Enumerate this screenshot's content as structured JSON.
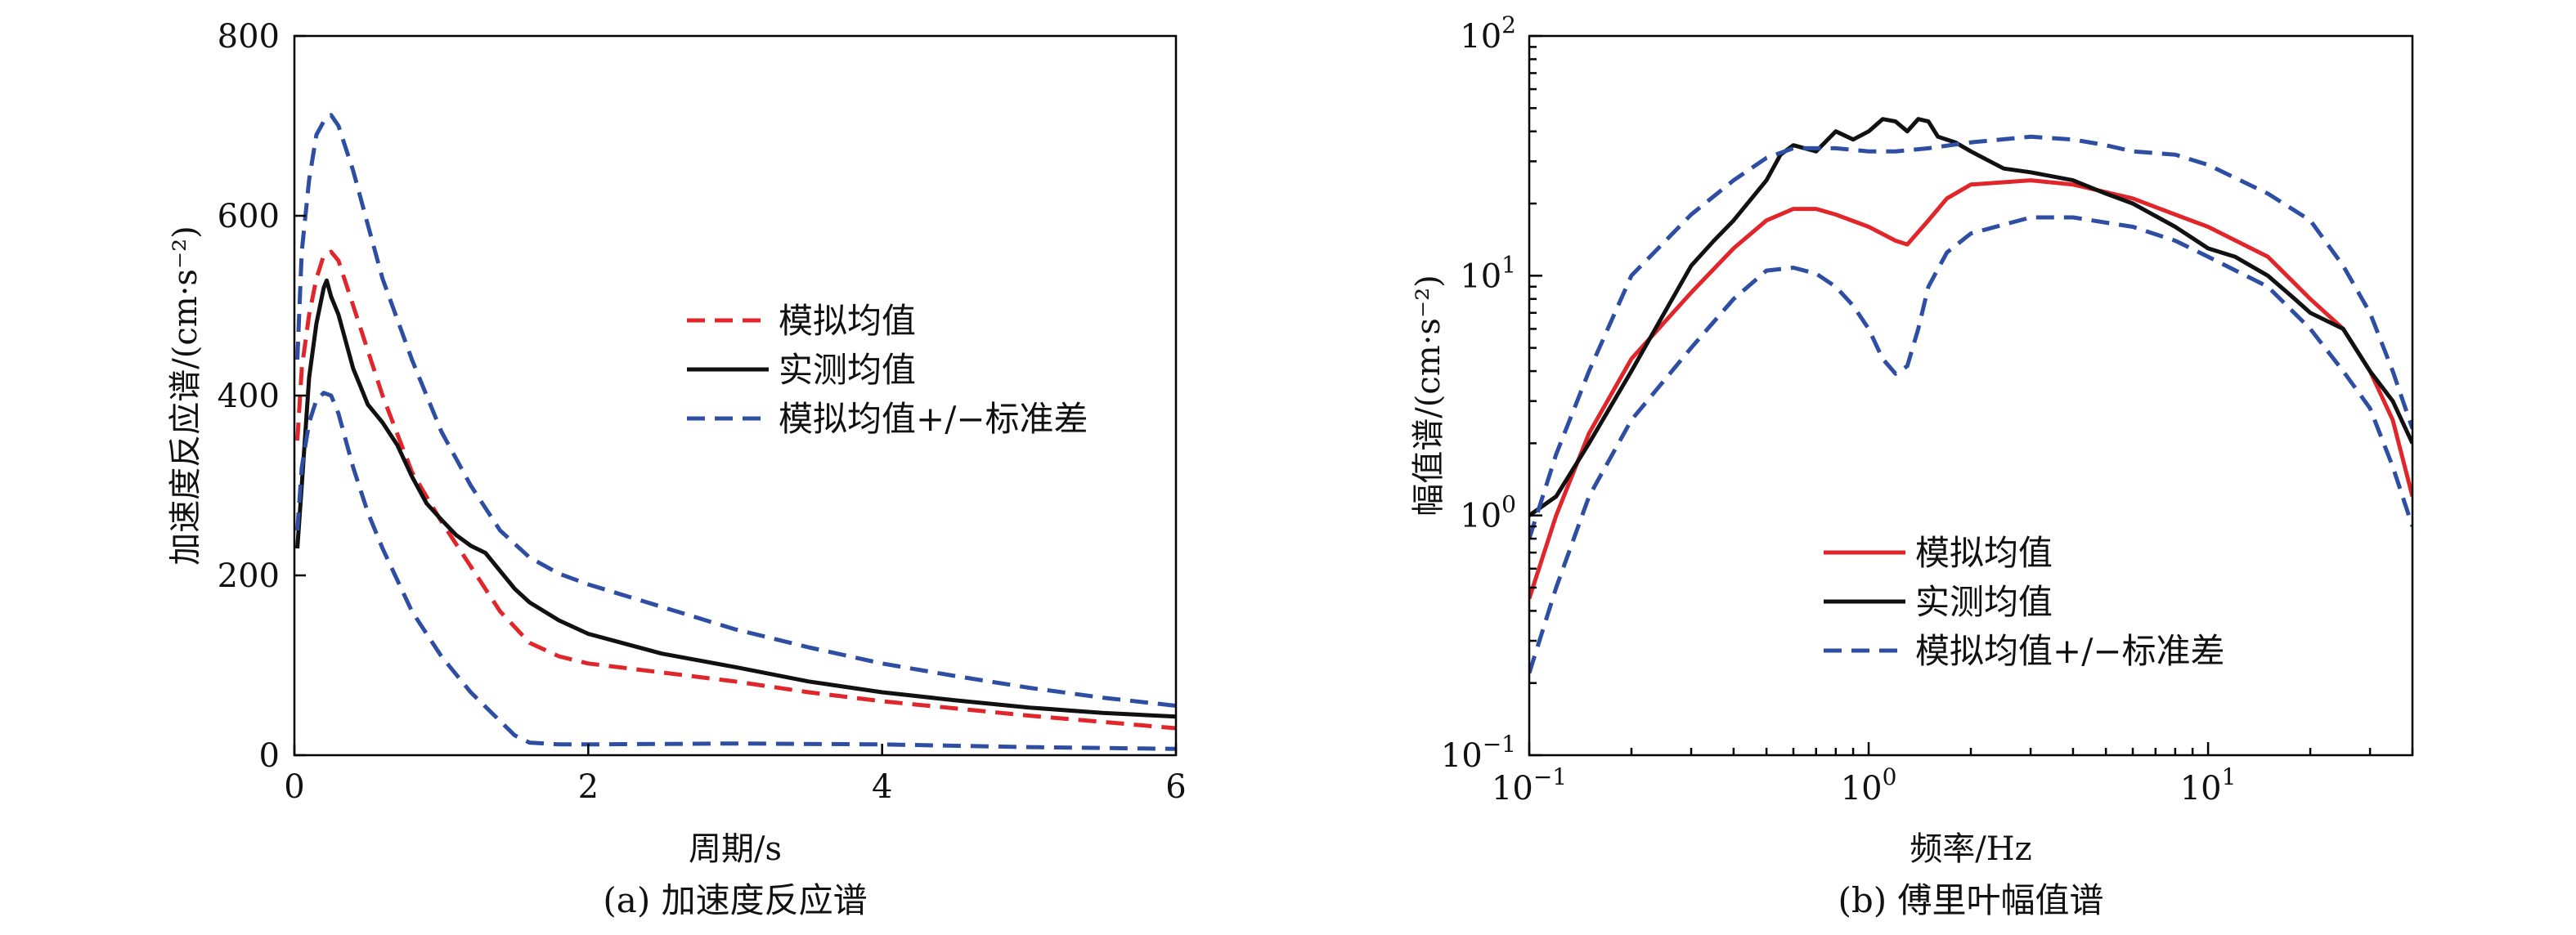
{
  "chart_data": [
    {
      "type": "line",
      "caption": "(a) 加速度反应谱",
      "xlabel": "周期/s",
      "ylabel": "加速度反应谱/(cm·s⁻²)",
      "xlim": [
        0,
        6
      ],
      "ylim": [
        0,
        800
      ],
      "xticks": [
        "0",
        "2",
        "4",
        "6"
      ],
      "yticks": [
        "0",
        "200",
        "400",
        "600",
        "800"
      ],
      "legend_position": "center-right",
      "series": [
        {
          "name": "模拟均值",
          "color": "#e0262b",
          "dash": "dashed",
          "points": [
            [
              0.02,
              350
            ],
            [
              0.05,
              430
            ],
            [
              0.1,
              490
            ],
            [
              0.15,
              530
            ],
            [
              0.2,
              556
            ],
            [
              0.25,
              560
            ],
            [
              0.3,
              550
            ],
            [
              0.4,
              500
            ],
            [
              0.5,
              450
            ],
            [
              0.6,
              400
            ],
            [
              0.8,
              315
            ],
            [
              1.0,
              260
            ],
            [
              1.2,
              210
            ],
            [
              1.4,
              160
            ],
            [
              1.6,
              125
            ],
            [
              1.8,
              110
            ],
            [
              2.0,
              102
            ],
            [
              2.5,
              92
            ],
            [
              3.0,
              82
            ],
            [
              3.5,
              70
            ],
            [
              4.0,
              60
            ],
            [
              4.5,
              52
            ],
            [
              5.0,
              44
            ],
            [
              5.5,
              37
            ],
            [
              6.0,
              30
            ]
          ]
        },
        {
          "name": "实测均值",
          "color": "#111111",
          "dash": "solid",
          "points": [
            [
              0.02,
              230
            ],
            [
              0.05,
              300
            ],
            [
              0.1,
              420
            ],
            [
              0.15,
              480
            ],
            [
              0.2,
              520
            ],
            [
              0.22,
              528
            ],
            [
              0.25,
              510
            ],
            [
              0.3,
              490
            ],
            [
              0.35,
              460
            ],
            [
              0.4,
              430
            ],
            [
              0.45,
              410
            ],
            [
              0.5,
              390
            ],
            [
              0.6,
              370
            ],
            [
              0.7,
              345
            ],
            [
              0.8,
              310
            ],
            [
              0.9,
              280
            ],
            [
              1.0,
              262
            ],
            [
              1.1,
              245
            ],
            [
              1.2,
              233
            ],
            [
              1.3,
              225
            ],
            [
              1.4,
              205
            ],
            [
              1.5,
              185
            ],
            [
              1.6,
              170
            ],
            [
              1.8,
              150
            ],
            [
              2.0,
              135
            ],
            [
              2.5,
              113
            ],
            [
              3.0,
              98
            ],
            [
              3.5,
              82
            ],
            [
              4.0,
              70
            ],
            [
              4.5,
              61
            ],
            [
              5.0,
              53
            ],
            [
              5.5,
              47
            ],
            [
              6.0,
              43
            ]
          ]
        },
        {
          "name": "模拟均值+/−标准差",
          "color": "#2d4ea3",
          "dash": "dashed",
          "points": [
            [
              0.02,
              440
            ],
            [
              0.05,
              560
            ],
            [
              0.1,
              640
            ],
            [
              0.15,
              690
            ],
            [
              0.2,
              705
            ],
            [
              0.25,
              712
            ],
            [
              0.3,
              700
            ],
            [
              0.4,
              650
            ],
            [
              0.5,
              590
            ],
            [
              0.6,
              530
            ],
            [
              0.8,
              440
            ],
            [
              1.0,
              360
            ],
            [
              1.2,
              300
            ],
            [
              1.4,
              250
            ],
            [
              1.6,
              220
            ],
            [
              1.8,
              202
            ],
            [
              2.0,
              190
            ],
            [
              2.5,
              165
            ],
            [
              3.0,
              140
            ],
            [
              3.5,
              120
            ],
            [
              4.0,
              102
            ],
            [
              4.5,
              88
            ],
            [
              5.0,
              75
            ],
            [
              5.5,
              64
            ],
            [
              6.0,
              55
            ]
          ]
        },
        {
          "name": "",
          "color": "#2d4ea3",
          "dash": "dashed",
          "points": [
            [
              0.02,
              250
            ],
            [
              0.05,
              320
            ],
            [
              0.1,
              370
            ],
            [
              0.15,
              395
            ],
            [
              0.2,
              403
            ],
            [
              0.25,
              400
            ],
            [
              0.3,
              380
            ],
            [
              0.4,
              320
            ],
            [
              0.5,
              270
            ],
            [
              0.6,
              230
            ],
            [
              0.8,
              160
            ],
            [
              1.0,
              110
            ],
            [
              1.2,
              70
            ],
            [
              1.4,
              38
            ],
            [
              1.5,
              22
            ],
            [
              1.6,
              14
            ],
            [
              1.8,
              12
            ],
            [
              2.0,
              12
            ],
            [
              3.0,
              13
            ],
            [
              4.0,
              12
            ],
            [
              5.0,
              9
            ],
            [
              6.0,
              7
            ]
          ]
        }
      ]
    },
    {
      "type": "line",
      "caption": "(b) 傅里叶幅值谱",
      "xlabel": "频率/Hz",
      "ylabel": "幅值谱/(cm·s⁻²)",
      "xscale": "log",
      "yscale": "log",
      "xlim": [
        0.1,
        40
      ],
      "ylim": [
        0.1,
        100
      ],
      "xticks": [
        {
          "base": "10",
          "exp": "−1"
        },
        {
          "base": "10",
          "exp": "0"
        },
        {
          "base": "10",
          "exp": "1"
        }
      ],
      "yticks": [
        {
          "base": "10",
          "exp": "−1"
        },
        {
          "base": "10",
          "exp": "0"
        },
        {
          "base": "10",
          "exp": "1"
        },
        {
          "base": "10",
          "exp": "2"
        }
      ],
      "legend_position": "lower-center",
      "series": [
        {
          "name": "模拟均值",
          "color": "#e0262b",
          "dash": "solid",
          "points": [
            [
              0.1,
              0.45
            ],
            [
              0.12,
              1.0
            ],
            [
              0.15,
              2.2
            ],
            [
              0.2,
              4.5
            ],
            [
              0.3,
              8.5
            ],
            [
              0.4,
              13
            ],
            [
              0.5,
              17
            ],
            [
              0.6,
              19
            ],
            [
              0.7,
              19
            ],
            [
              0.8,
              18
            ],
            [
              1.0,
              16
            ],
            [
              1.2,
              14
            ],
            [
              1.3,
              13.5
            ],
            [
              1.5,
              17
            ],
            [
              1.7,
              21
            ],
            [
              2.0,
              24
            ],
            [
              3.0,
              25
            ],
            [
              4.0,
              24
            ],
            [
              6.0,
              21
            ],
            [
              8.0,
              18
            ],
            [
              10,
              16
            ],
            [
              15,
              12
            ],
            [
              20,
              8
            ],
            [
              25,
              6
            ],
            [
              30,
              4
            ],
            [
              35,
              2.5
            ],
            [
              40,
              1.2
            ]
          ]
        },
        {
          "name": "实测均值",
          "color": "#111111",
          "dash": "solid",
          "points": [
            [
              0.1,
              1.0
            ],
            [
              0.12,
              1.2
            ],
            [
              0.15,
              2.0
            ],
            [
              0.2,
              4.0
            ],
            [
              0.25,
              7.0
            ],
            [
              0.3,
              11
            ],
            [
              0.35,
              14
            ],
            [
              0.4,
              17
            ],
            [
              0.5,
              25
            ],
            [
              0.55,
              32
            ],
            [
              0.6,
              35
            ],
            [
              0.7,
              33
            ],
            [
              0.8,
              40
            ],
            [
              0.9,
              37
            ],
            [
              1.0,
              40
            ],
            [
              1.1,
              45
            ],
            [
              1.2,
              44
            ],
            [
              1.3,
              40
            ],
            [
              1.4,
              45
            ],
            [
              1.5,
              44
            ],
            [
              1.6,
              38
            ],
            [
              1.8,
              36
            ],
            [
              2.0,
              33
            ],
            [
              2.5,
              28
            ],
            [
              3.0,
              27
            ],
            [
              4.0,
              25
            ],
            [
              5.0,
              22
            ],
            [
              6.0,
              20
            ],
            [
              8.0,
              16
            ],
            [
              10,
              13
            ],
            [
              12,
              12
            ],
            [
              15,
              10
            ],
            [
              18,
              8
            ],
            [
              20,
              7
            ],
            [
              25,
              6
            ],
            [
              30,
              4
            ],
            [
              35,
              3
            ],
            [
              40,
              2
            ]
          ]
        },
        {
          "name": "模拟均值+/−标准差",
          "color": "#2d4ea3",
          "dash": "dashed",
          "points": [
            [
              0.1,
              0.8
            ],
            [
              0.12,
              1.8
            ],
            [
              0.15,
              4.0
            ],
            [
              0.2,
              10
            ],
            [
              0.3,
              18
            ],
            [
              0.4,
              25
            ],
            [
              0.5,
              31
            ],
            [
              0.6,
              34
            ],
            [
              0.8,
              34
            ],
            [
              1.0,
              33
            ],
            [
              1.2,
              33
            ],
            [
              1.5,
              34
            ],
            [
              2.0,
              36
            ],
            [
              3.0,
              38
            ],
            [
              4.0,
              37
            ],
            [
              5.0,
              35
            ],
            [
              6.0,
              33
            ],
            [
              8.0,
              32
            ],
            [
              10,
              29
            ],
            [
              15,
              22
            ],
            [
              20,
              17
            ],
            [
              25,
              11
            ],
            [
              30,
              7
            ],
            [
              35,
              4
            ],
            [
              40,
              2.3
            ]
          ]
        },
        {
          "name": "",
          "color": "#2d4ea3",
          "dash": "dashed",
          "points": [
            [
              0.1,
              0.22
            ],
            [
              0.12,
              0.5
            ],
            [
              0.15,
              1.2
            ],
            [
              0.2,
              2.5
            ],
            [
              0.3,
              5
            ],
            [
              0.4,
              8
            ],
            [
              0.5,
              10.5
            ],
            [
              0.6,
              10.8
            ],
            [
              0.7,
              10.2
            ],
            [
              0.8,
              9
            ],
            [
              0.9,
              7.5
            ],
            [
              1.0,
              6
            ],
            [
              1.1,
              4.5
            ],
            [
              1.2,
              3.9
            ],
            [
              1.3,
              4.2
            ],
            [
              1.4,
              6
            ],
            [
              1.5,
              9
            ],
            [
              1.7,
              12.5
            ],
            [
              2.0,
              15
            ],
            [
              3.0,
              17.5
            ],
            [
              4.0,
              17.5
            ],
            [
              6.0,
              16
            ],
            [
              8.0,
              14
            ],
            [
              10,
              12
            ],
            [
              15,
              9
            ],
            [
              20,
              6
            ],
            [
              25,
              4
            ],
            [
              30,
              2.8
            ],
            [
              35,
              1.6
            ],
            [
              40,
              0.9
            ]
          ]
        }
      ]
    }
  ]
}
